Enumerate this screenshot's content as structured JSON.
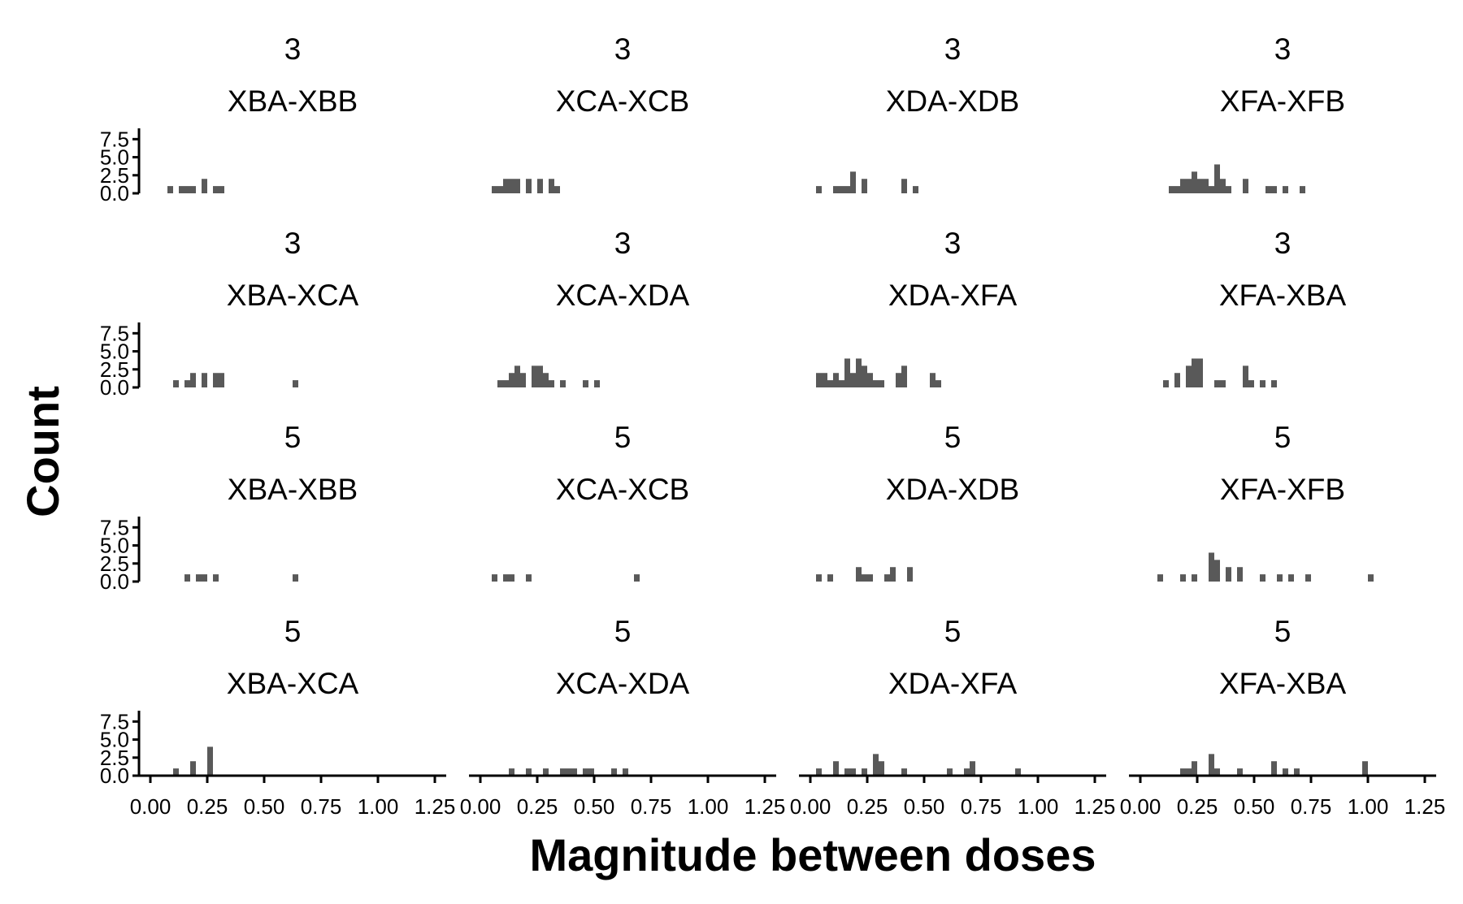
{
  "chart_data": {
    "type": "histogram",
    "xlabel": "Magnitude between doses",
    "ylabel": "Count",
    "xlim": [
      -0.05,
      1.3
    ],
    "ylim": [
      0,
      9
    ],
    "bin_width": 0.025,
    "x_ticks": [
      "0.00",
      "0.25",
      "0.50",
      "0.75",
      "1.00",
      "1.25"
    ],
    "x_tick_values": [
      0,
      0.25,
      0.5,
      0.75,
      1.0,
      1.25
    ],
    "y_ticks": [
      "0.0",
      "2.5",
      "5.0",
      "7.5"
    ],
    "y_tick_values": [
      0,
      2.5,
      5,
      7.5
    ],
    "panels": [
      {
        "group": "3",
        "label": "XBA-XBB",
        "bins": [
          [
            0.075,
            1
          ],
          [
            0.125,
            1
          ],
          [
            0.15,
            1
          ],
          [
            0.175,
            1
          ],
          [
            0.225,
            2
          ],
          [
            0.275,
            1
          ],
          [
            0.3,
            1
          ]
        ]
      },
      {
        "group": "3",
        "label": "XCA-XCB",
        "bins": [
          [
            0.05,
            1
          ],
          [
            0.075,
            1
          ],
          [
            0.1,
            2
          ],
          [
            0.125,
            2
          ],
          [
            0.15,
            2
          ],
          [
            0.2,
            2
          ],
          [
            0.25,
            2
          ],
          [
            0.3,
            2
          ],
          [
            0.325,
            1
          ]
        ]
      },
      {
        "group": "3",
        "label": "XDA-XDB",
        "bins": [
          [
            0.025,
            1
          ],
          [
            0.1,
            1
          ],
          [
            0.125,
            1
          ],
          [
            0.15,
            1
          ],
          [
            0.175,
            3
          ],
          [
            0.225,
            2
          ],
          [
            0.4,
            2
          ],
          [
            0.45,
            1
          ]
        ]
      },
      {
        "group": "3",
        "label": "XFA-XFB",
        "bins": [
          [
            0.125,
            1
          ],
          [
            0.15,
            1
          ],
          [
            0.175,
            2
          ],
          [
            0.2,
            2
          ],
          [
            0.225,
            3
          ],
          [
            0.25,
            2
          ],
          [
            0.275,
            2
          ],
          [
            0.3,
            1
          ],
          [
            0.325,
            4
          ],
          [
            0.35,
            2
          ],
          [
            0.375,
            1
          ],
          [
            0.45,
            2
          ],
          [
            0.55,
            1
          ],
          [
            0.575,
            1
          ],
          [
            0.625,
            1
          ],
          [
            0.7,
            1
          ]
        ]
      },
      {
        "group": "3",
        "label": "XBA-XCA",
        "bins": [
          [
            0.1,
            1
          ],
          [
            0.15,
            1
          ],
          [
            0.175,
            2
          ],
          [
            0.225,
            2
          ],
          [
            0.275,
            2
          ],
          [
            0.3,
            2
          ],
          [
            0.625,
            1
          ]
        ]
      },
      {
        "group": "3",
        "label": "XCA-XDA",
        "bins": [
          [
            0.075,
            1
          ],
          [
            0.1,
            1
          ],
          [
            0.125,
            2
          ],
          [
            0.15,
            3
          ],
          [
            0.175,
            2
          ],
          [
            0.225,
            3
          ],
          [
            0.25,
            3
          ],
          [
            0.275,
            2
          ],
          [
            0.3,
            1
          ],
          [
            0.35,
            1
          ],
          [
            0.45,
            1
          ],
          [
            0.5,
            1
          ]
        ]
      },
      {
        "group": "3",
        "label": "XDA-XFA",
        "bins": [
          [
            0.025,
            2
          ],
          [
            0.05,
            2
          ],
          [
            0.075,
            1
          ],
          [
            0.1,
            2
          ],
          [
            0.125,
            1
          ],
          [
            0.15,
            4
          ],
          [
            0.175,
            2
          ],
          [
            0.2,
            4
          ],
          [
            0.225,
            3
          ],
          [
            0.25,
            2
          ],
          [
            0.275,
            1
          ],
          [
            0.3,
            1
          ],
          [
            0.375,
            2
          ],
          [
            0.4,
            3
          ],
          [
            0.525,
            2
          ],
          [
            0.55,
            1
          ]
        ]
      },
      {
        "group": "3",
        "label": "XFA-XBA",
        "bins": [
          [
            0.1,
            1
          ],
          [
            0.15,
            2
          ],
          [
            0.2,
            3
          ],
          [
            0.225,
            4
          ],
          [
            0.25,
            4
          ],
          [
            0.325,
            1
          ],
          [
            0.35,
            1
          ],
          [
            0.45,
            3
          ],
          [
            0.475,
            1
          ],
          [
            0.525,
            1
          ],
          [
            0.575,
            1
          ]
        ]
      },
      {
        "group": "5",
        "label": "XBA-XBB",
        "bins": [
          [
            0.15,
            1
          ],
          [
            0.2,
            1
          ],
          [
            0.225,
            1
          ],
          [
            0.275,
            1
          ],
          [
            0.625,
            1
          ]
        ]
      },
      {
        "group": "5",
        "label": "XCA-XCB",
        "bins": [
          [
            0.05,
            1
          ],
          [
            0.1,
            1
          ],
          [
            0.125,
            1
          ],
          [
            0.2,
            1
          ],
          [
            0.675,
            1
          ]
        ]
      },
      {
        "group": "5",
        "label": "XDA-XDB",
        "bins": [
          [
            0.025,
            1
          ],
          [
            0.075,
            1
          ],
          [
            0.2,
            2
          ],
          [
            0.225,
            1
          ],
          [
            0.25,
            1
          ],
          [
            0.325,
            1
          ],
          [
            0.35,
            2
          ],
          [
            0.425,
            2
          ]
        ]
      },
      {
        "group": "5",
        "label": "XFA-XFB",
        "bins": [
          [
            0.075,
            1
          ],
          [
            0.175,
            1
          ],
          [
            0.225,
            1
          ],
          [
            0.3,
            4
          ],
          [
            0.325,
            3
          ],
          [
            0.375,
            2
          ],
          [
            0.425,
            2
          ],
          [
            0.525,
            1
          ],
          [
            0.6,
            1
          ],
          [
            0.65,
            1
          ],
          [
            0.725,
            1
          ],
          [
            1.0,
            1
          ]
        ]
      },
      {
        "group": "5",
        "label": "XBA-XCA",
        "bins": [
          [
            0.1,
            1
          ],
          [
            0.175,
            2
          ],
          [
            0.25,
            4
          ]
        ]
      },
      {
        "group": "5",
        "label": "XCA-XDA",
        "bins": [
          [
            0.125,
            1
          ],
          [
            0.2,
            1
          ],
          [
            0.275,
            1
          ],
          [
            0.35,
            1
          ],
          [
            0.375,
            1
          ],
          [
            0.4,
            1
          ],
          [
            0.45,
            1
          ],
          [
            0.475,
            1
          ],
          [
            0.575,
            1
          ],
          [
            0.625,
            1
          ]
        ]
      },
      {
        "group": "5",
        "label": "XDA-XFA",
        "bins": [
          [
            0.025,
            1
          ],
          [
            0.1,
            2
          ],
          [
            0.15,
            1
          ],
          [
            0.175,
            1
          ],
          [
            0.225,
            1
          ],
          [
            0.275,
            3
          ],
          [
            0.3,
            2
          ],
          [
            0.4,
            1
          ],
          [
            0.6,
            1
          ],
          [
            0.675,
            1
          ],
          [
            0.7,
            2
          ],
          [
            0.9,
            1
          ]
        ]
      },
      {
        "group": "5",
        "label": "XFA-XBA",
        "bins": [
          [
            0.175,
            1
          ],
          [
            0.2,
            1
          ],
          [
            0.225,
            2
          ],
          [
            0.3,
            3
          ],
          [
            0.325,
            1
          ],
          [
            0.425,
            1
          ],
          [
            0.575,
            2
          ],
          [
            0.625,
            1
          ],
          [
            0.675,
            1
          ],
          [
            0.975,
            2
          ]
        ]
      }
    ]
  }
}
